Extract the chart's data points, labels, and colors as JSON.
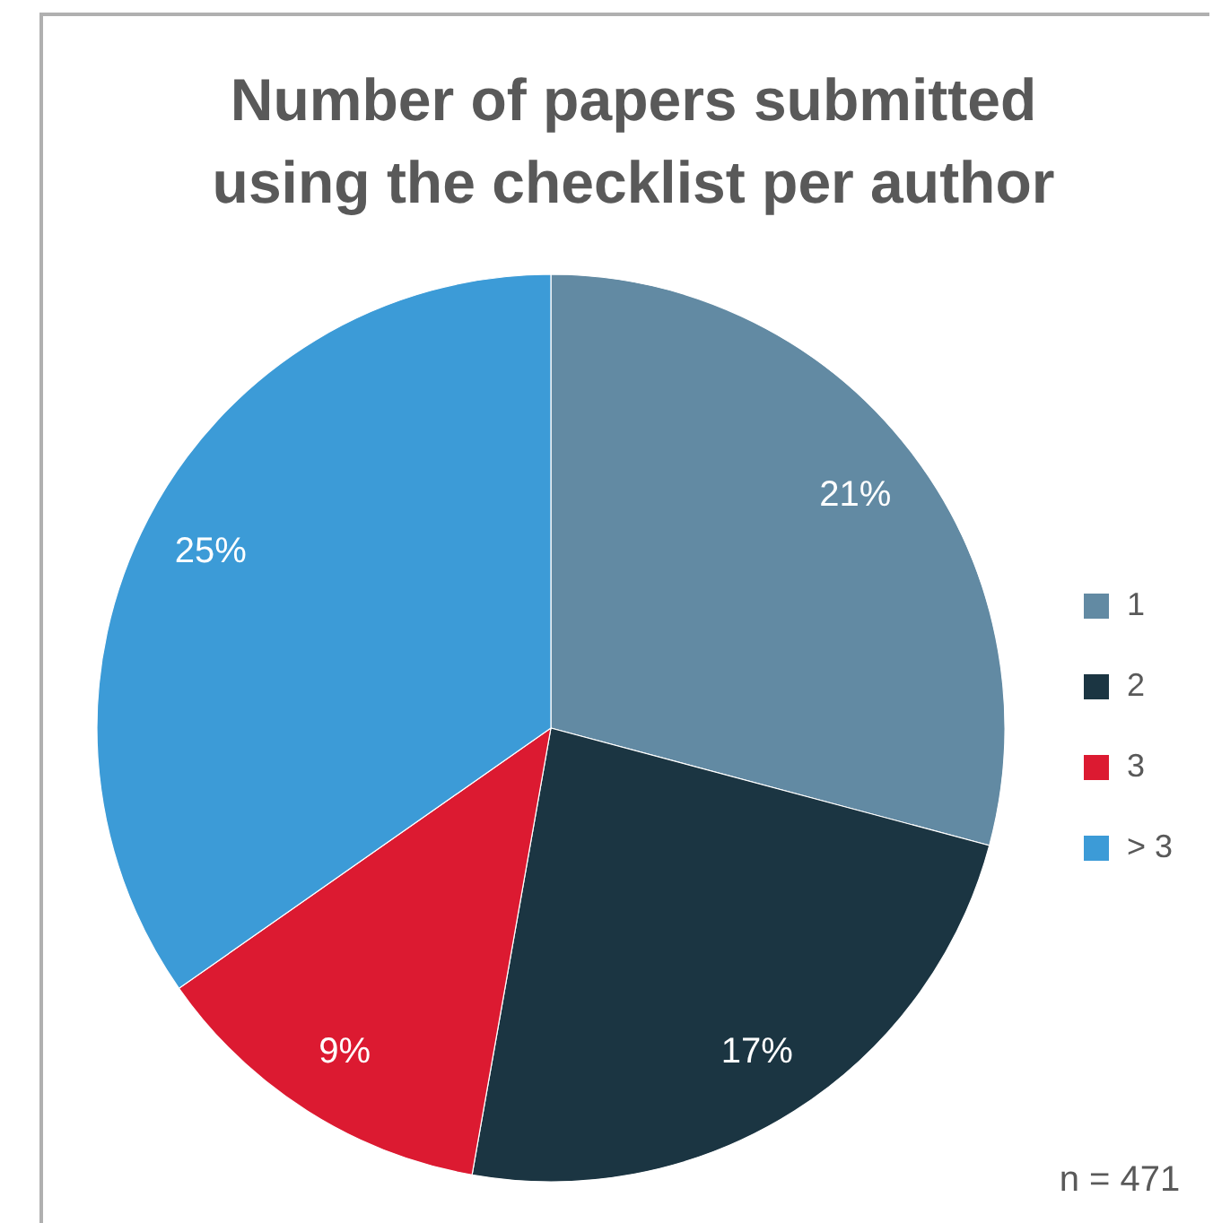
{
  "chart_data": {
    "type": "pie",
    "title": "Number of papers submitted using the checklist per author",
    "categories": [
      "1",
      "2",
      "3",
      "> 3"
    ],
    "values": [
      21,
      17,
      9,
      25
    ],
    "colors": [
      "#628aa3",
      "#1b3542",
      "#dc1a31",
      "#3c9bd7"
    ],
    "value_labels": [
      "21%",
      "17%",
      "9%",
      "25%"
    ],
    "legend": "right",
    "annotations": [
      "n = 471"
    ]
  }
}
